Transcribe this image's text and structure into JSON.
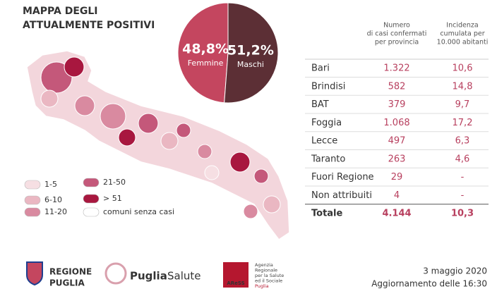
{
  "title": [
    "MAPPA DEGLI",
    "ATTUALMENTE POSITIVI"
  ],
  "chart_data": {
    "type": "pie",
    "categories": [
      "Femmine",
      "Maschi"
    ],
    "values": [
      48.8,
      51.2
    ],
    "value_labels": [
      "48,8%",
      "51,2%"
    ],
    "colors": [
      "#c4465f",
      "#5c2f35"
    ]
  },
  "legend": {
    "items": [
      {
        "label": "1-5",
        "color": "#f6dfe3"
      },
      {
        "label": "6-10",
        "color": "#eab7c2"
      },
      {
        "label": "11-20",
        "color": "#d98aa0"
      },
      {
        "label": "21-50",
        "color": "#c4587a"
      },
      {
        "label": "> 51",
        "color": "#a8173f"
      },
      {
        "label": "comuni senza casi",
        "color": "#ffffff"
      }
    ]
  },
  "table": {
    "columns": [
      [
        "Numero",
        "di casi confermati",
        "per provincia"
      ],
      [
        "Incidenza",
        "cumulata per",
        "10.000 abitanti"
      ]
    ],
    "rows": [
      [
        "Bari",
        "1.322",
        "10,6"
      ],
      [
        "Brindisi",
        "582",
        "14,8"
      ],
      [
        "BAT",
        "379",
        "9,7"
      ],
      [
        "Foggia",
        "1.068",
        "17,2"
      ],
      [
        "Lecce",
        "497",
        "6,3"
      ],
      [
        "Taranto",
        "263",
        "4,6"
      ],
      [
        "Fuori Regione",
        "29",
        "-"
      ],
      [
        "Non attribuiti",
        "4",
        "-"
      ]
    ],
    "total": [
      "Totale",
      "4.144",
      "10,3"
    ]
  },
  "footer": {
    "regione": [
      "REGIONE",
      "PUGLIA"
    ],
    "puglia_salute": [
      "Puglia",
      "Salute"
    ],
    "aress": "AReSS",
    "aress_name": [
      "Agenzia",
      "Regionale",
      "per la Salute",
      "ed il Sociale",
      "Puglia"
    ],
    "date": "3 maggio 2020",
    "update": "Aggiornamento delle 16:30"
  }
}
